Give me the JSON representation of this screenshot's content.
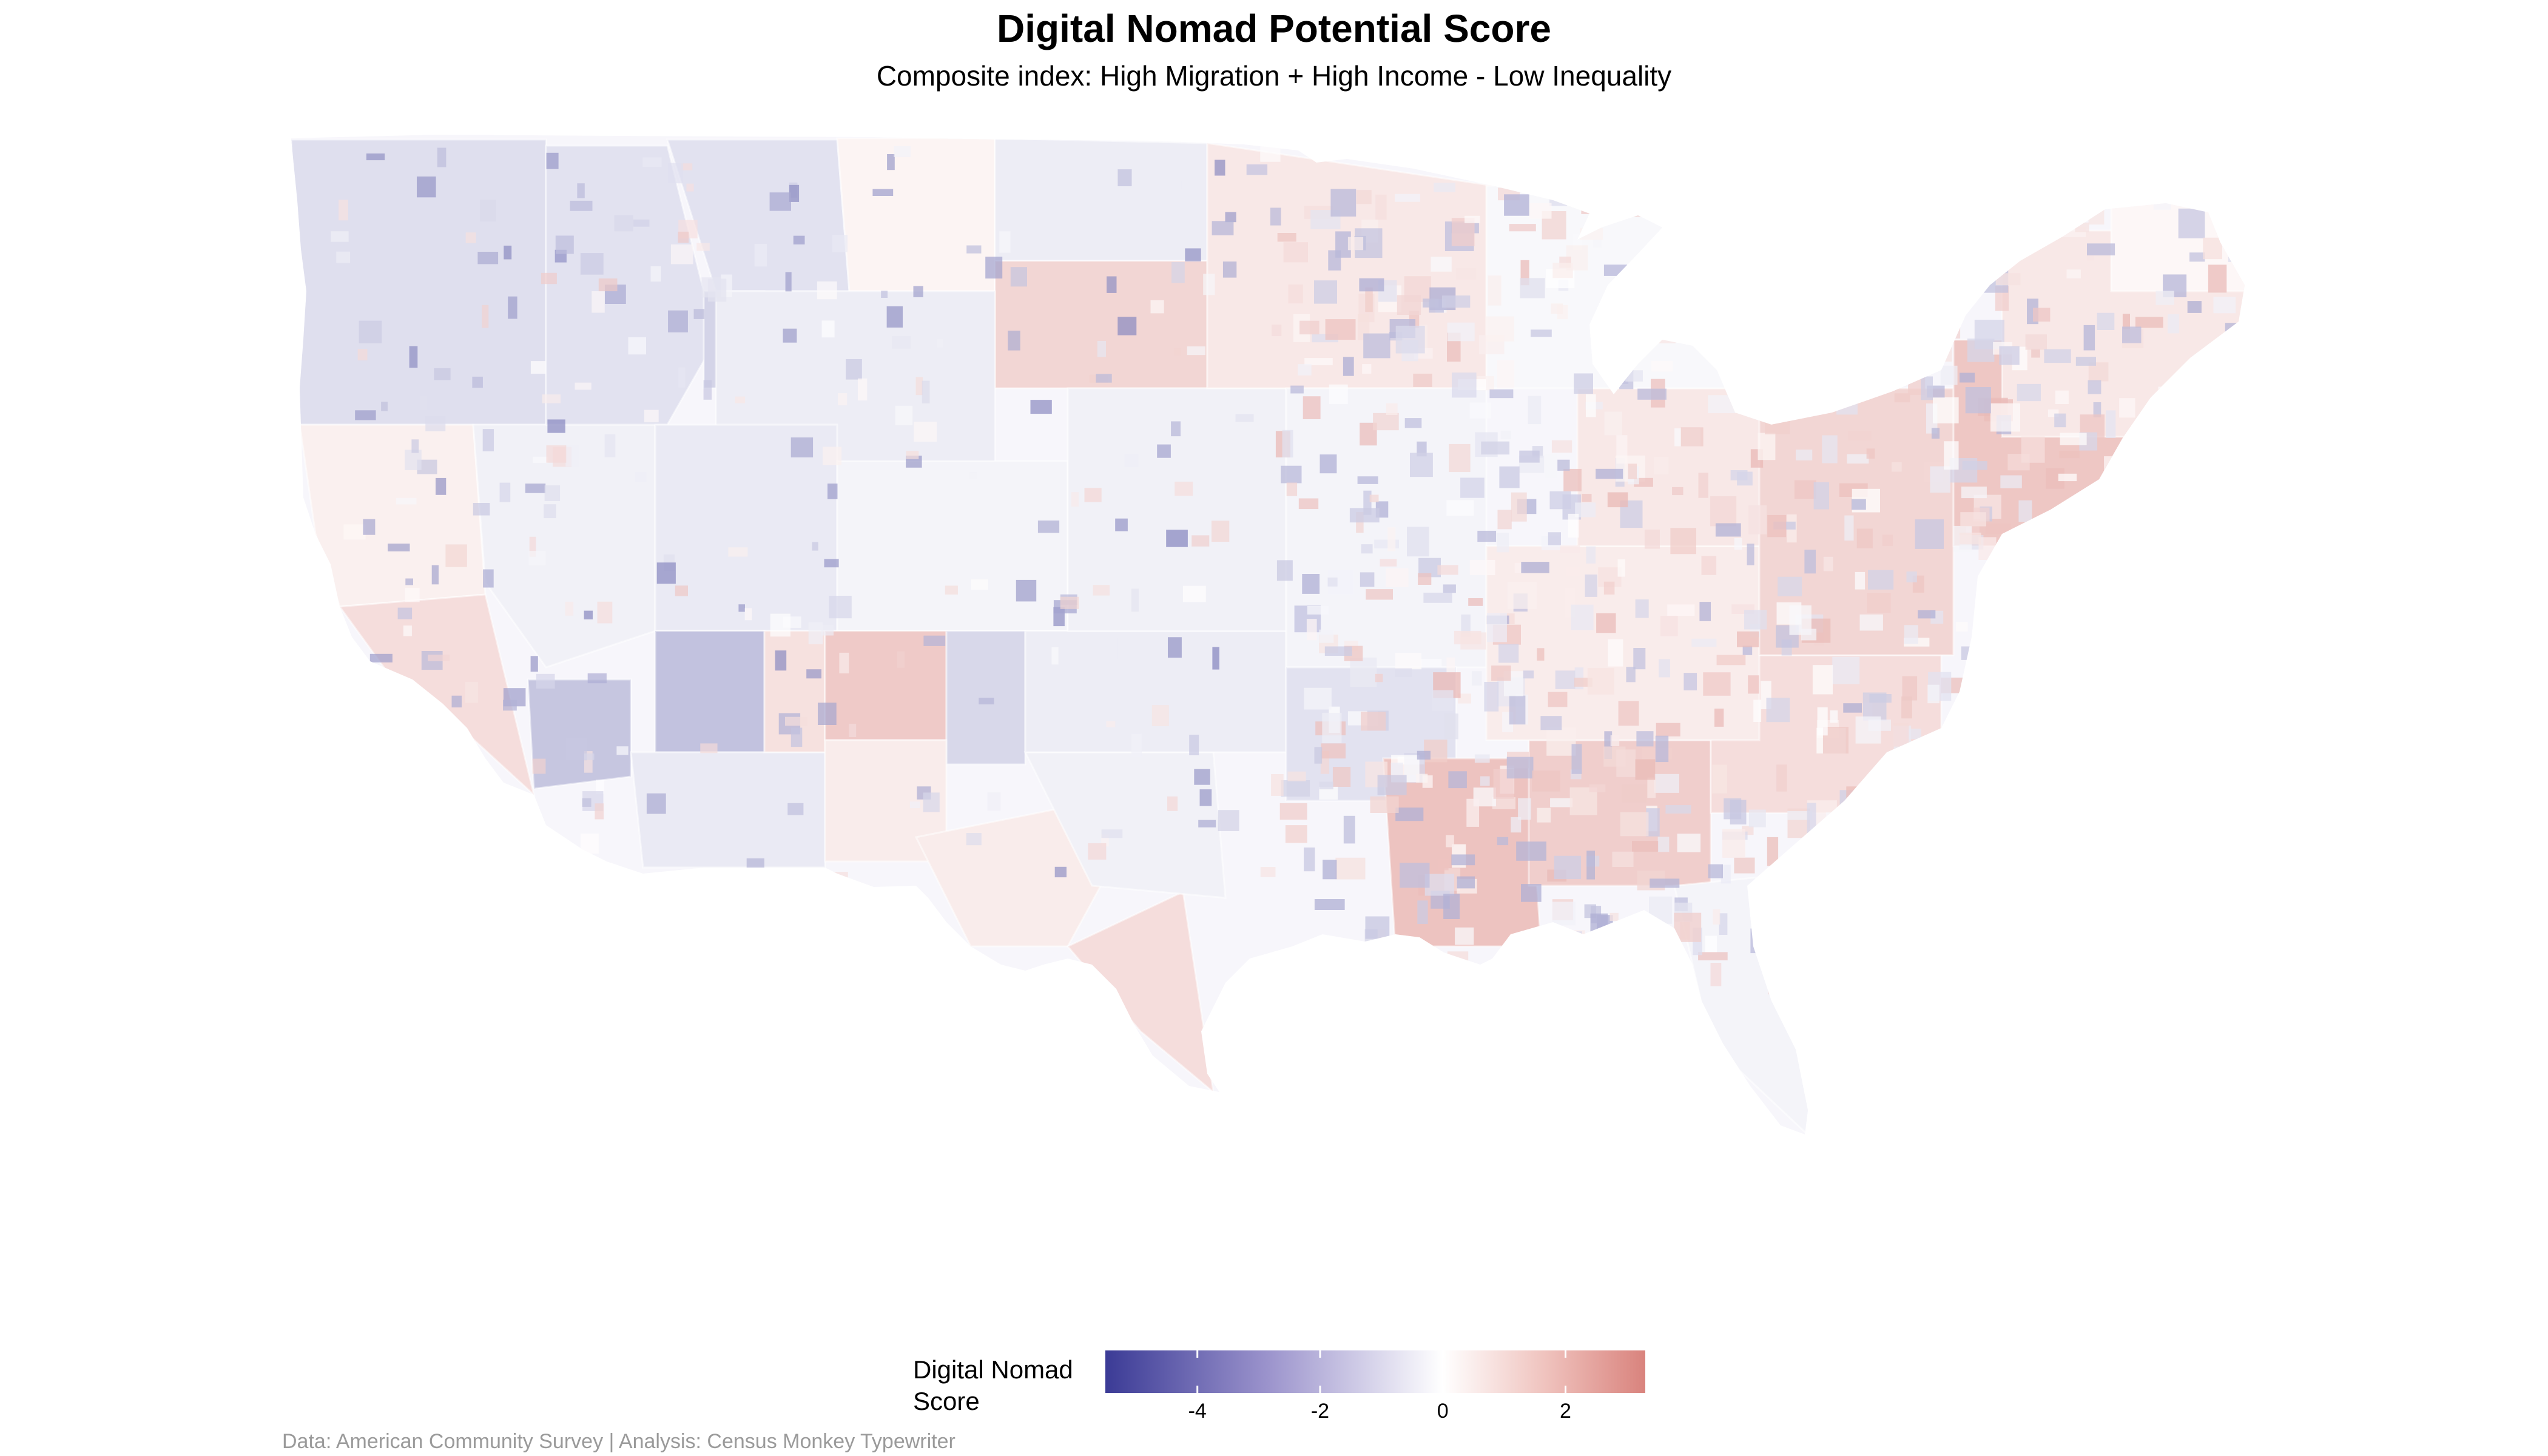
{
  "title": "Digital Nomad Potential Score",
  "subtitle": "Composite index: High Migration + High Income - Low Inequality",
  "legend": {
    "title_line1": "Digital Nomad",
    "title_line2": "Score",
    "min": -5.5,
    "max": 3.3,
    "ticks": [
      {
        "value": -4,
        "label": "-4"
      },
      {
        "value": -2,
        "label": "-2"
      },
      {
        "value": 0,
        "label": "0"
      },
      {
        "value": 2,
        "label": "2"
      }
    ],
    "colors": {
      "low": "#3b3b96",
      "mid": "#ffffff",
      "high": "#d9837d"
    }
  },
  "caption": "Data: American Community Survey | Analysis: Census Monkey Typewriter",
  "map_data": {
    "land_color": "#f7f6fb",
    "regions": [
      {
        "name": "pacific-northwest",
        "score": -0.9
      },
      {
        "name": "northern-california",
        "score": 0.4
      },
      {
        "name": "southern-california-coast",
        "score": 0.9
      },
      {
        "name": "mojave-desert",
        "score": -1.6
      },
      {
        "name": "nevada",
        "score": -0.4
      },
      {
        "name": "idaho",
        "score": -0.8
      },
      {
        "name": "montana-west",
        "score": -0.8
      },
      {
        "name": "montana-central",
        "score": -1.2
      },
      {
        "name": "montana-east",
        "score": 0.3
      },
      {
        "name": "north-dakota-west",
        "score": -0.5
      },
      {
        "name": "south-dakota-west",
        "score": 1.1
      },
      {
        "name": "wyoming",
        "score": -0.5
      },
      {
        "name": "utah",
        "score": -0.6
      },
      {
        "name": "colorado",
        "score": -0.3
      },
      {
        "name": "arizona-north",
        "score": -1.7
      },
      {
        "name": "arizona-south",
        "score": -0.6
      },
      {
        "name": "new-mexico-northwest",
        "score": 0.8
      },
      {
        "name": "new-mexico-north-central",
        "score": 1.4
      },
      {
        "name": "new-mexico-east",
        "score": -1.1
      },
      {
        "name": "new-mexico-south",
        "score": 0.5
      },
      {
        "name": "west-texas",
        "score": 0.5
      },
      {
        "name": "texas-south",
        "score": 0.9
      },
      {
        "name": "texas-central",
        "score": -0.4
      },
      {
        "name": "oklahoma",
        "score": -0.5
      },
      {
        "name": "kansas-nebraska",
        "score": -0.4
      },
      {
        "name": "minnesota",
        "score": 0.6
      },
      {
        "name": "iowa-missouri",
        "score": -0.3
      },
      {
        "name": "arkansas",
        "score": -0.8
      },
      {
        "name": "louisiana-mississippi",
        "score": 1.6
      },
      {
        "name": "alabama-georgia",
        "score": 1.3
      },
      {
        "name": "florida",
        "score": -0.3
      },
      {
        "name": "carolinas",
        "score": 0.9
      },
      {
        "name": "tennessee-kentucky",
        "score": 0.5
      },
      {
        "name": "ohio-valley",
        "score": 0.6
      },
      {
        "name": "great-lakes",
        "score": -0.2
      },
      {
        "name": "appalachia",
        "score": 1.1
      },
      {
        "name": "mid-atlantic",
        "score": 1.5
      },
      {
        "name": "new-england",
        "score": 0.6
      },
      {
        "name": "northern-maine",
        "score": 0.2
      }
    ]
  }
}
